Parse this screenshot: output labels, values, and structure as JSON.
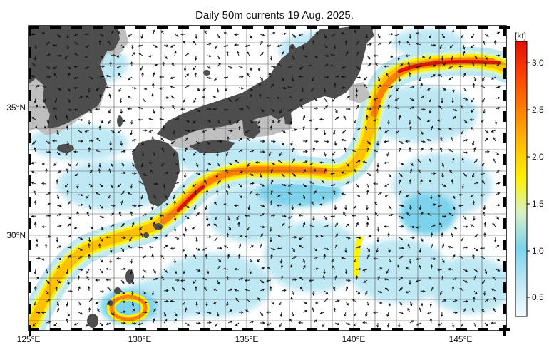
{
  "title": "Daily 50m currents 19 Aug. 2025.",
  "colorbar": {
    "unit": "[kt]",
    "ticks": [
      "0.5",
      "1.0",
      "1.5",
      "2.0",
      "2.5",
      "3.0"
    ],
    "colors": [
      "#f4fbff",
      "#bfe8f5",
      "#7dd3ec",
      "#d9f2c4",
      "#fff200",
      "#ffc000",
      "#ff8000",
      "#ff4000",
      "#e01000"
    ]
  },
  "axes": {
    "x_ticks": [
      "125°E",
      "130°E",
      "135°E",
      "140°E",
      "145°E"
    ],
    "y_ticks": [
      "35°N",
      "30°N"
    ]
  },
  "colors": {
    "land": "#4d4d4d",
    "shelf": "#bfbfbf",
    "arrow": "#111111",
    "grid": "#555555"
  }
}
